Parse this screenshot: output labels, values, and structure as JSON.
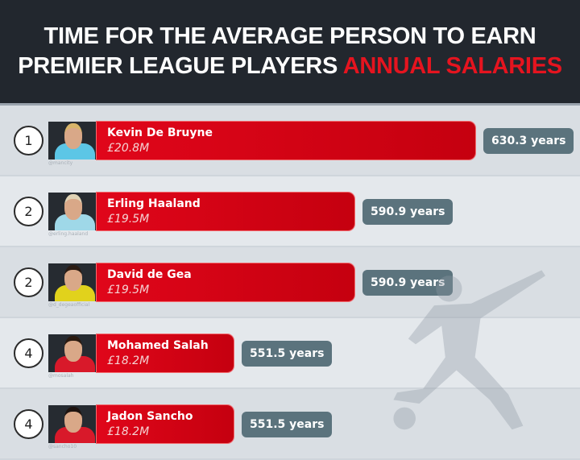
{
  "header": {
    "title_line1": "TIME FOR THE AVERAGE PERSON TO EARN",
    "title_line2_white": "PREMIER LEAGUE PLAYERS ",
    "title_line2_red": "ANNUAL SALARIES"
  },
  "colors": {
    "header_bg": "#22272e",
    "accent_red": "#e5141f",
    "badge": "#5b737d"
  },
  "chart_data": {
    "type": "bar",
    "orientation": "horizontal",
    "title": "TIME FOR THE AVERAGE PERSON TO EARN PREMIER LEAGUE PLAYERS ANNUAL SALARIES",
    "categories": [
      "Kevin De Bruyne",
      "Erling Haaland",
      "David de Gea",
      "Mohamed Salah",
      "Jadon Sancho"
    ],
    "values": [
      630.3,
      590.9,
      590.9,
      551.5,
      551.5
    ],
    "unit": "years",
    "rows": [
      {
        "rank": "1",
        "name": "Kevin De Bruyne",
        "salary": "£20.8M",
        "years": 630.3,
        "years_label": "630.3 years",
        "credit": "@mancity",
        "shirt": "#5cc6e6",
        "hair": "#d8b56a"
      },
      {
        "rank": "2",
        "name": "Erling Haaland",
        "salary": "£19.5M",
        "years": 590.9,
        "years_label": "590.9 years",
        "credit": "@erling.haaland",
        "shirt": "#9fd8e8",
        "hair": "#e0d3b5"
      },
      {
        "rank": "2",
        "name": "David de Gea",
        "salary": "£19.5M",
        "years": 590.9,
        "years_label": "590.9 years",
        "credit": "@d_degeaofficial",
        "shirt": "#e1d21c",
        "hair": "#2b1c14"
      },
      {
        "rank": "4",
        "name": "Mohamed Salah",
        "salary": "£18.2M",
        "years": 551.5,
        "years_label": "551.5 years",
        "credit": "@mosalah",
        "shirt": "#d8192a",
        "hair": "#2a1a10"
      },
      {
        "rank": "4",
        "name": "Jadon Sancho",
        "salary": "£18.2M",
        "years": 551.5,
        "years_label": "551.5 years",
        "credit": "@sancho10",
        "shirt": "#d8192a",
        "hair": "#1e1410"
      }
    ]
  }
}
